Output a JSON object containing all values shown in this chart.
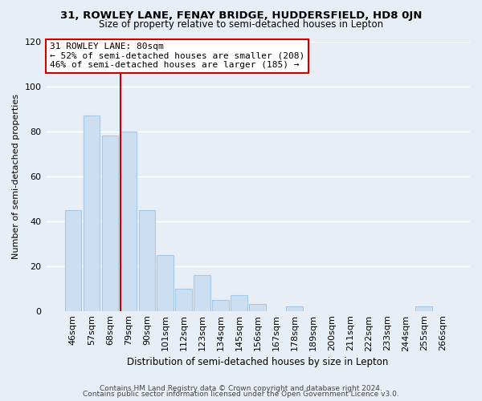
{
  "title1": "31, ROWLEY LANE, FENAY BRIDGE, HUDDERSFIELD, HD8 0JN",
  "title2": "Size of property relative to semi-detached houses in Lepton",
  "xlabel": "Distribution of semi-detached houses by size in Lepton",
  "ylabel": "Number of semi-detached properties",
  "bar_labels": [
    "46sqm",
    "57sqm",
    "68sqm",
    "79sqm",
    "90sqm",
    "101sqm",
    "112sqm",
    "123sqm",
    "134sqm",
    "145sqm",
    "156sqm",
    "167sqm",
    "178sqm",
    "189sqm",
    "200sqm",
    "211sqm",
    "222sqm",
    "233sqm",
    "244sqm",
    "255sqm",
    "266sqm"
  ],
  "bar_values": [
    45,
    87,
    78,
    80,
    45,
    25,
    10,
    16,
    5,
    7,
    3,
    0,
    2,
    0,
    0,
    0,
    0,
    0,
    0,
    2,
    0
  ],
  "bar_color": "#ccdff0",
  "bar_edge_color": "#a8c8e8",
  "highlight_line_color": "#cc0000",
  "highlight_bar_index": 3,
  "ylim": [
    0,
    120
  ],
  "yticks": [
    0,
    20,
    40,
    60,
    80,
    100,
    120
  ],
  "annotation_title": "31 ROWLEY LANE: 80sqm",
  "annotation_line1": "← 52% of semi-detached houses are smaller (208)",
  "annotation_line2": "46% of semi-detached houses are larger (185) →",
  "annotation_box_color": "#ffffff",
  "annotation_box_edge": "#cc0000",
  "footer1": "Contains HM Land Registry data © Crown copyright and database right 2024.",
  "footer2": "Contains public sector information licensed under the Open Government Licence v3.0.",
  "background_color": "#e8eef5",
  "grid_color": "#ffffff"
}
